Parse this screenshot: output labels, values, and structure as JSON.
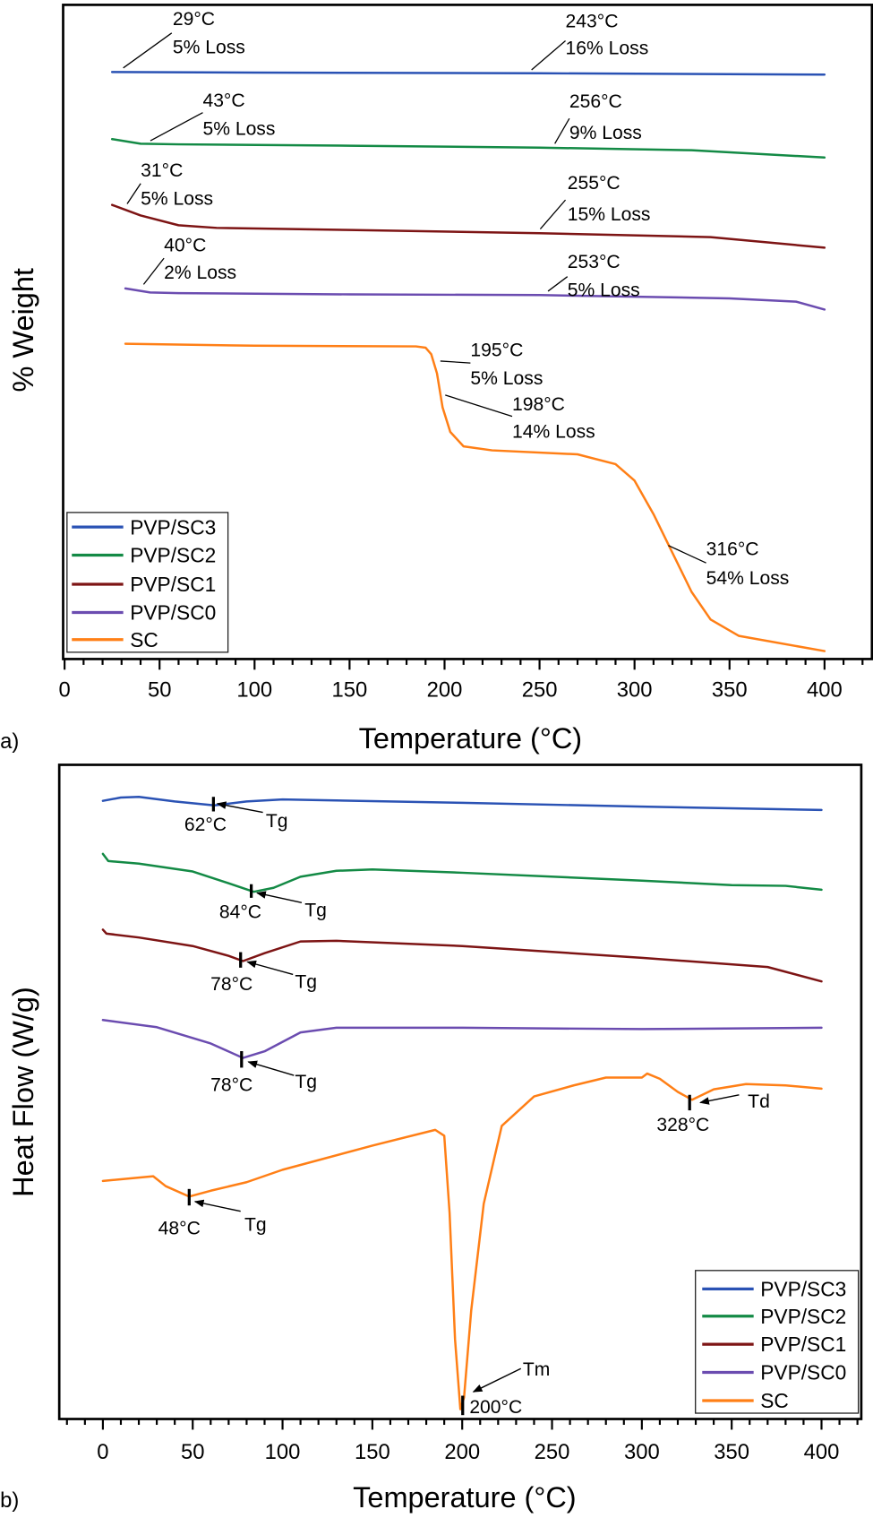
{
  "chart_data": [
    {
      "panel_label": "a)",
      "type": "line",
      "xlabel": "Temperature (°C)",
      "ylabel": "% Weight",
      "xlim": [
        0,
        425
      ],
      "xticks": [
        0,
        50,
        100,
        150,
        200,
        250,
        300,
        350,
        400
      ],
      "x_minor_step": 10,
      "ylim": [
        0,
        100
      ],
      "y_tick_labels_shown": false,
      "grid": false,
      "legend": {
        "position": "bottom-left",
        "entries": [
          "PVP/SC3",
          "PVP/SC2",
          "PVP/SC1",
          "PVP/SC0",
          "SC"
        ]
      },
      "series": [
        {
          "name": "PVP/SC3",
          "color": "#2a52b4",
          "points": [
            [
              25,
              89.8
            ],
            [
              100,
              89.7
            ],
            [
              250,
              89.6
            ],
            [
              400,
              89.4
            ]
          ]
        },
        {
          "name": "PVP/SC2",
          "color": "#138a45",
          "points": [
            [
              25,
              79.6
            ],
            [
              40,
              78.9
            ],
            [
              60,
              78.8
            ],
            [
              150,
              78.6
            ],
            [
              250,
              78.3
            ],
            [
              330,
              77.9
            ],
            [
              400,
              76.8
            ]
          ]
        },
        {
          "name": "PVP/SC1",
          "color": "#7d1414",
          "points": [
            [
              25,
              69.6
            ],
            [
              40,
              68.0
            ],
            [
              60,
              66.5
            ],
            [
              80,
              66.1
            ],
            [
              150,
              65.8
            ],
            [
              250,
              65.3
            ],
            [
              340,
              64.7
            ],
            [
              400,
              63.1
            ]
          ]
        },
        {
          "name": "PVP/SC0",
          "color": "#6b4cb0",
          "points": [
            [
              32,
              56.9
            ],
            [
              45,
              56.3
            ],
            [
              60,
              56.2
            ],
            [
              150,
              56.0
            ],
            [
              250,
              55.9
            ],
            [
              350,
              55.4
            ],
            [
              385,
              54.9
            ],
            [
              400,
              53.7
            ]
          ]
        },
        {
          "name": "SC",
          "color": "#ff7f16",
          "points": [
            [
              32,
              48.5
            ],
            [
              100,
              48.2
            ],
            [
              185,
              48.1
            ],
            [
              190,
              47.9
            ],
            [
              193,
              46.9
            ],
            [
              196,
              44.0
            ],
            [
              199,
              38.8
            ],
            [
              203,
              35.1
            ],
            [
              210,
              32.9
            ],
            [
              225,
              32.3
            ],
            [
              270,
              31.7
            ],
            [
              290,
              30.2
            ],
            [
              300,
              27.7
            ],
            [
              310,
              22.6
            ],
            [
              320,
              16.7
            ],
            [
              330,
              10.8
            ],
            [
              340,
              6.6
            ],
            [
              355,
              4.1
            ],
            [
              400,
              1.8
            ]
          ]
        }
      ],
      "annotations": [
        {
          "temp": "29°C",
          "loss": "5% Loss"
        },
        {
          "temp": "243°C",
          "loss": "16% Loss"
        },
        {
          "temp": "43°C",
          "loss": "5% Loss"
        },
        {
          "temp": "256°C",
          "loss": "9% Loss"
        },
        {
          "temp": "31°C",
          "loss": "5% Loss"
        },
        {
          "temp": "255°C",
          "loss": "15% Loss"
        },
        {
          "temp": "40°C",
          "loss": "2% Loss"
        },
        {
          "temp": "253°C",
          "loss": "5% Loss"
        },
        {
          "temp": "195°C",
          "loss": "5% Loss"
        },
        {
          "temp": "198°C",
          "loss": "14% Loss"
        },
        {
          "temp": "316°C",
          "loss": "54% Loss"
        }
      ]
    },
    {
      "panel_label": "b)",
      "type": "line",
      "xlabel": "Temperature (°C)",
      "ylabel": "Heat Flow (W/g)",
      "xlim": [
        -24,
        422
      ],
      "xticks": [
        0,
        50,
        100,
        150,
        200,
        250,
        300,
        350,
        400
      ],
      "x_minor_step": 10,
      "ylim": [
        0,
        100
      ],
      "y_tick_labels_shown": false,
      "grid": false,
      "legend": {
        "position": "bottom-right",
        "entries": [
          "PVP/SC3",
          "PVP/SC2",
          "PVP/SC1",
          "PVP/SC0",
          "SC"
        ]
      },
      "series": [
        {
          "name": "PVP/SC3",
          "color": "#2a52b4",
          "points": [
            [
              0,
              94.5
            ],
            [
              10,
              95.0
            ],
            [
              20,
              95.1
            ],
            [
              40,
              94.4
            ],
            [
              62,
              93.8
            ],
            [
              80,
              94.4
            ],
            [
              100,
              94.7
            ],
            [
              200,
              94.2
            ],
            [
              300,
              93.6
            ],
            [
              400,
              93.1
            ]
          ]
        },
        {
          "name": "PVP/SC2",
          "color": "#138a45",
          "points": [
            [
              0,
              86.4
            ],
            [
              3,
              85.3
            ],
            [
              20,
              84.9
            ],
            [
              50,
              83.7
            ],
            [
              70,
              81.9
            ],
            [
              84,
              80.6
            ],
            [
              95,
              81.2
            ],
            [
              110,
              82.9
            ],
            [
              130,
              83.8
            ],
            [
              150,
              84.0
            ],
            [
              200,
              83.5
            ],
            [
              300,
              82.3
            ],
            [
              350,
              81.6
            ],
            [
              380,
              81.5
            ],
            [
              400,
              80.9
            ]
          ]
        },
        {
          "name": "PVP/SC1",
          "color": "#7d1414",
          "points": [
            [
              0,
              74.8
            ],
            [
              2,
              74.2
            ],
            [
              20,
              73.6
            ],
            [
              50,
              72.3
            ],
            [
              70,
              70.8
            ],
            [
              78,
              70.0
            ],
            [
              90,
              71.2
            ],
            [
              110,
              73.0
            ],
            [
              130,
              73.1
            ],
            [
              200,
              72.3
            ],
            [
              300,
              70.5
            ],
            [
              370,
              69.1
            ],
            [
              400,
              66.9
            ]
          ]
        },
        {
          "name": "PVP/SC0",
          "color": "#6b4cb0",
          "points": [
            [
              0,
              61.0
            ],
            [
              30,
              59.9
            ],
            [
              60,
              57.4
            ],
            [
              78,
              55.2
            ],
            [
              90,
              56.2
            ],
            [
              110,
              59.1
            ],
            [
              130,
              59.8
            ],
            [
              200,
              59.8
            ],
            [
              300,
              59.6
            ],
            [
              400,
              59.8
            ]
          ]
        },
        {
          "name": "SC",
          "color": "#ff7f16",
          "points": [
            [
              0,
              36.4
            ],
            [
              28,
              37.1
            ],
            [
              35,
              35.6
            ],
            [
              48,
              34.0
            ],
            [
              60,
              34.9
            ],
            [
              80,
              36.2
            ],
            [
              100,
              38.1
            ],
            [
              150,
              41.8
            ],
            [
              185,
              44.2
            ],
            [
              190,
              43.3
            ],
            [
              193,
              31.5
            ],
            [
              196,
              12.2
            ],
            [
              199,
              1.5
            ],
            [
              201,
              3.3
            ],
            [
              205,
              16.6
            ],
            [
              212,
              32.9
            ],
            [
              222,
              44.8
            ],
            [
              240,
              49.3
            ],
            [
              262,
              51.0
            ],
            [
              280,
              52.2
            ],
            [
              300,
              52.2
            ],
            [
              303,
              52.8
            ],
            [
              310,
              52.0
            ],
            [
              320,
              50.0
            ],
            [
              328,
              48.8
            ],
            [
              340,
              50.4
            ],
            [
              358,
              51.2
            ],
            [
              380,
              51.0
            ],
            [
              400,
              50.5
            ]
          ]
        }
      ],
      "annotations": [
        {
          "temp": "62°C",
          "label": "Tg"
        },
        {
          "temp": "84°C",
          "label": "Tg"
        },
        {
          "temp": "78°C",
          "label": "Tg"
        },
        {
          "temp": "78°C",
          "label": "Tg"
        },
        {
          "temp": "328°C",
          "label": "Td"
        },
        {
          "temp": "48°C",
          "label": "Tg"
        },
        {
          "temp": "200°C",
          "label": "Tm"
        }
      ]
    }
  ]
}
